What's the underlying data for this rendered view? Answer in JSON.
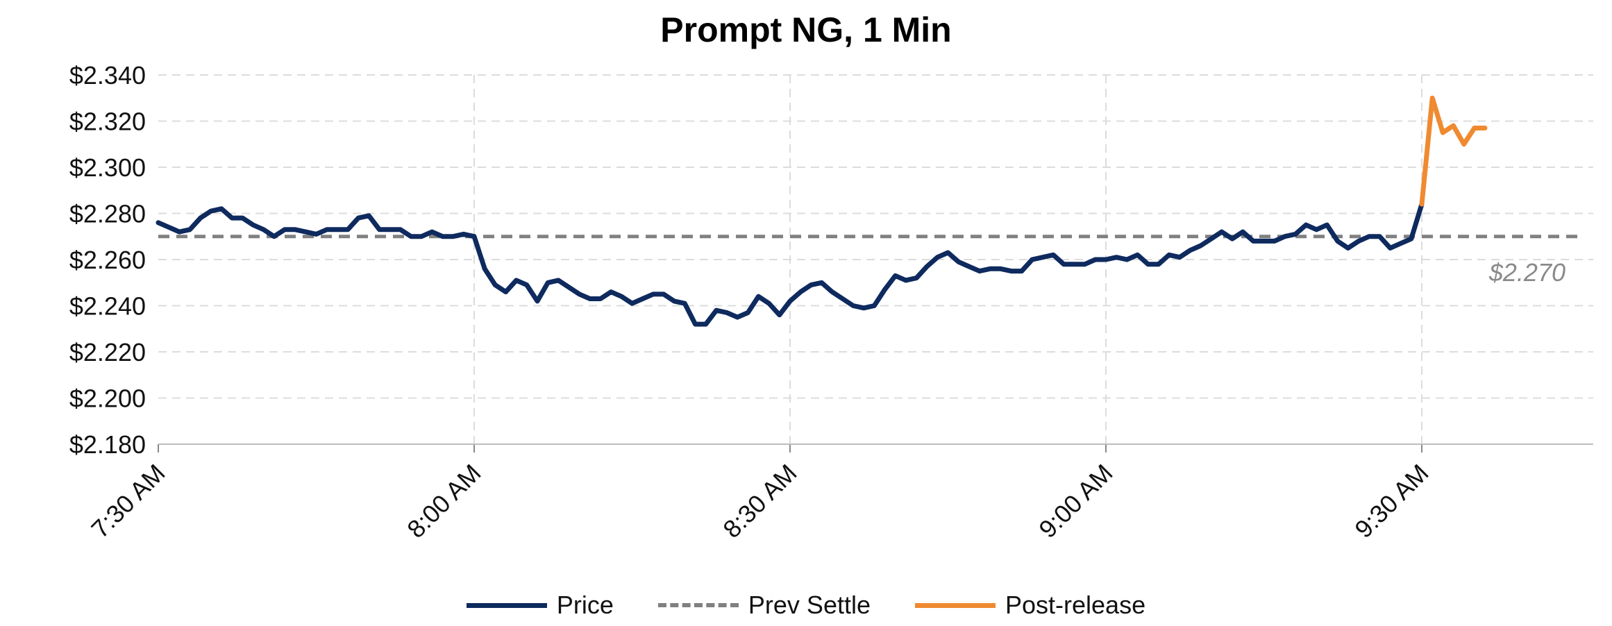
{
  "chart_data": {
    "type": "line",
    "title": "Prompt NG, 1 Min",
    "xlabel": "",
    "ylabel": "",
    "x_start_label": "7:30 AM",
    "x_ticks": [
      "7:30 AM",
      "8:00 AM",
      "8:30 AM",
      "9:00 AM",
      "9:30 AM"
    ],
    "y_ticks": [
      "$2.340",
      "$2.320",
      "$2.300",
      "$2.280",
      "$2.260",
      "$2.240",
      "$2.220",
      "$2.200",
      "$2.180"
    ],
    "ylim": [
      2.18,
      2.34
    ],
    "grid": true,
    "legend_position": "bottom",
    "series": [
      {
        "name": "Price",
        "color": "#0e2a5e",
        "x_minutes": [
          0,
          1,
          2,
          3,
          4,
          5,
          6,
          7,
          8,
          9,
          10,
          11,
          12,
          13,
          14,
          15,
          16,
          17,
          18,
          19,
          20,
          21,
          22,
          23,
          24,
          25,
          26,
          27,
          28,
          29,
          30,
          31,
          32,
          33,
          34,
          35,
          36,
          37,
          38,
          39,
          40,
          41,
          42,
          43,
          44,
          45,
          46,
          47,
          48,
          49,
          50,
          51,
          52,
          53,
          54,
          55,
          56,
          57,
          58,
          59,
          60,
          61,
          62,
          63,
          64,
          65,
          66,
          67,
          68,
          69,
          70,
          71,
          72,
          73,
          74,
          75,
          76,
          77,
          78,
          79,
          80,
          81,
          82,
          83,
          84,
          85,
          86,
          87,
          88,
          89,
          90,
          91,
          92,
          93,
          94,
          95,
          96,
          97,
          98,
          99,
          100,
          101,
          102,
          103,
          104,
          105,
          106,
          107,
          108,
          109,
          110,
          111,
          112,
          113,
          114,
          115,
          116,
          117,
          118,
          119,
          120
        ],
        "values": [
          2.276,
          2.274,
          2.272,
          2.273,
          2.278,
          2.281,
          2.282,
          2.278,
          2.278,
          2.275,
          2.273,
          2.27,
          2.273,
          2.273,
          2.272,
          2.271,
          2.273,
          2.273,
          2.273,
          2.278,
          2.279,
          2.273,
          2.273,
          2.273,
          2.27,
          2.27,
          2.272,
          2.27,
          2.27,
          2.271,
          2.27,
          2.256,
          2.249,
          2.246,
          2.251,
          2.249,
          2.242,
          2.25,
          2.251,
          2.248,
          2.245,
          2.243,
          2.243,
          2.246,
          2.244,
          2.241,
          2.243,
          2.245,
          2.245,
          2.242,
          2.241,
          2.232,
          2.232,
          2.238,
          2.237,
          2.235,
          2.237,
          2.244,
          2.241,
          2.236,
          2.242,
          2.246,
          2.249,
          2.25,
          2.246,
          2.243,
          2.24,
          2.239,
          2.24,
          2.247,
          2.253,
          2.251,
          2.252,
          2.257,
          2.261,
          2.263,
          2.259,
          2.257,
          2.255,
          2.256,
          2.256,
          2.255,
          2.255,
          2.26,
          2.261,
          2.262,
          2.258,
          2.258,
          2.258,
          2.26,
          2.26,
          2.261,
          2.26,
          2.262,
          2.258,
          2.258,
          2.262,
          2.261,
          2.264,
          2.266,
          2.269,
          2.272,
          2.269,
          2.272,
          2.268,
          2.268,
          2.268,
          2.27,
          2.271,
          2.275,
          2.273,
          2.275,
          2.268,
          2.265,
          2.268,
          2.27,
          2.27,
          2.265,
          2.267,
          2.269,
          2.284
        ]
      },
      {
        "name": "Prev Settle",
        "color": "#808080",
        "dashed": true,
        "value": 2.27,
        "x_range_minutes": [
          0,
          135
        ],
        "label": "$2.270"
      },
      {
        "name": "Post-release",
        "color": "#f08a30",
        "x_minutes": [
          120,
          121,
          122,
          123,
          124,
          125,
          126
        ],
        "values": [
          2.284,
          2.33,
          2.315,
          2.318,
          2.31,
          2.317,
          2.317
        ]
      }
    ]
  }
}
